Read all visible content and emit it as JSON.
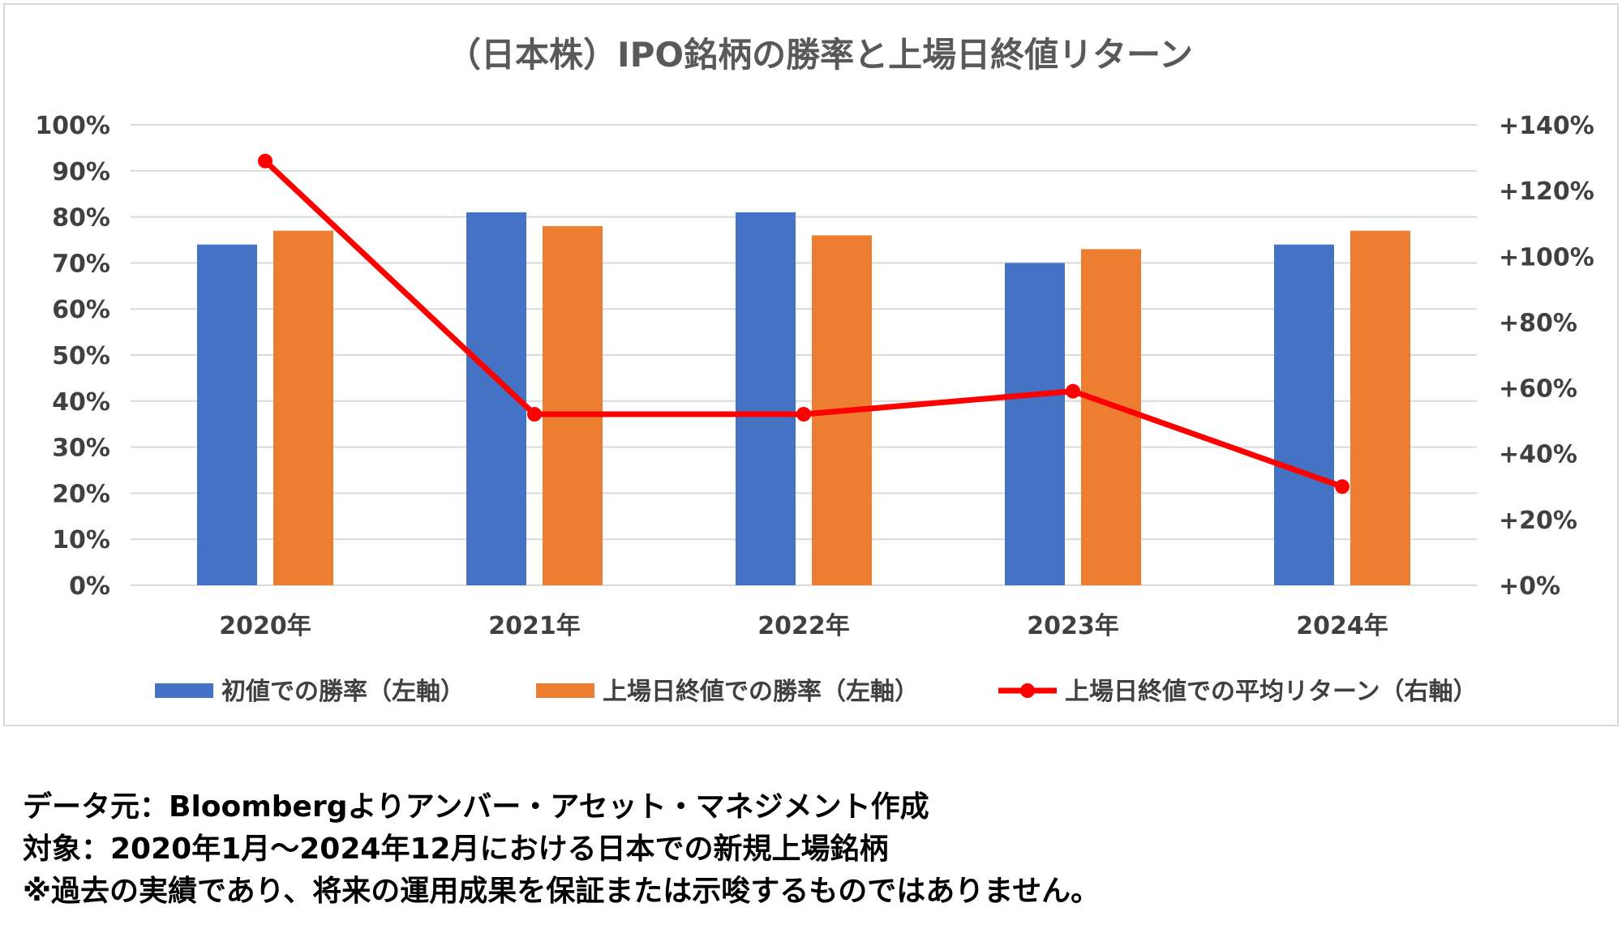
{
  "chart_data": {
    "type": "bar",
    "title": "（日本株）IPO銘柄の勝率と上場日終値リターン",
    "categories": [
      "2020年",
      "2021年",
      "2022年",
      "2023年",
      "2024年"
    ],
    "series": [
      {
        "name": "初値での勝率（左軸）",
        "type": "bar",
        "axis": "left",
        "color": "#4472c4",
        "values": [
          74,
          81,
          81,
          70,
          74
        ]
      },
      {
        "name": "上場日終値での勝率（左軸）",
        "type": "bar",
        "axis": "left",
        "color": "#ed7d31",
        "values": [
          77,
          78,
          76,
          73,
          77
        ]
      },
      {
        "name": "上場日終値での平均リターン（右軸）",
        "type": "line",
        "axis": "right",
        "color": "#ff0000",
        "values": [
          129,
          52,
          52,
          59,
          30
        ]
      }
    ],
    "left_axis": {
      "min": 0,
      "max": 100,
      "step": 10,
      "tick_labels": [
        "0%",
        "10%",
        "20%",
        "30%",
        "40%",
        "50%",
        "60%",
        "70%",
        "80%",
        "90%",
        "100%"
      ]
    },
    "right_axis": {
      "min": 0,
      "max": 140,
      "step": 20,
      "tick_labels": [
        "+0%",
        "+20%",
        "+40%",
        "+60%",
        "+80%",
        "+100%",
        "+120%",
        "+140%"
      ]
    },
    "grid": true,
    "legend_position": "bottom"
  },
  "footnotes": {
    "source": "データ元：Bloombergよりアンバー・アセット・マネジメント作成",
    "target": "対象：2020年1月～2024年12月における日本での新規上場銘柄",
    "disclaimer": "※過去の実績であり、将来の運用成果を保証または示唆するものではありません。"
  }
}
